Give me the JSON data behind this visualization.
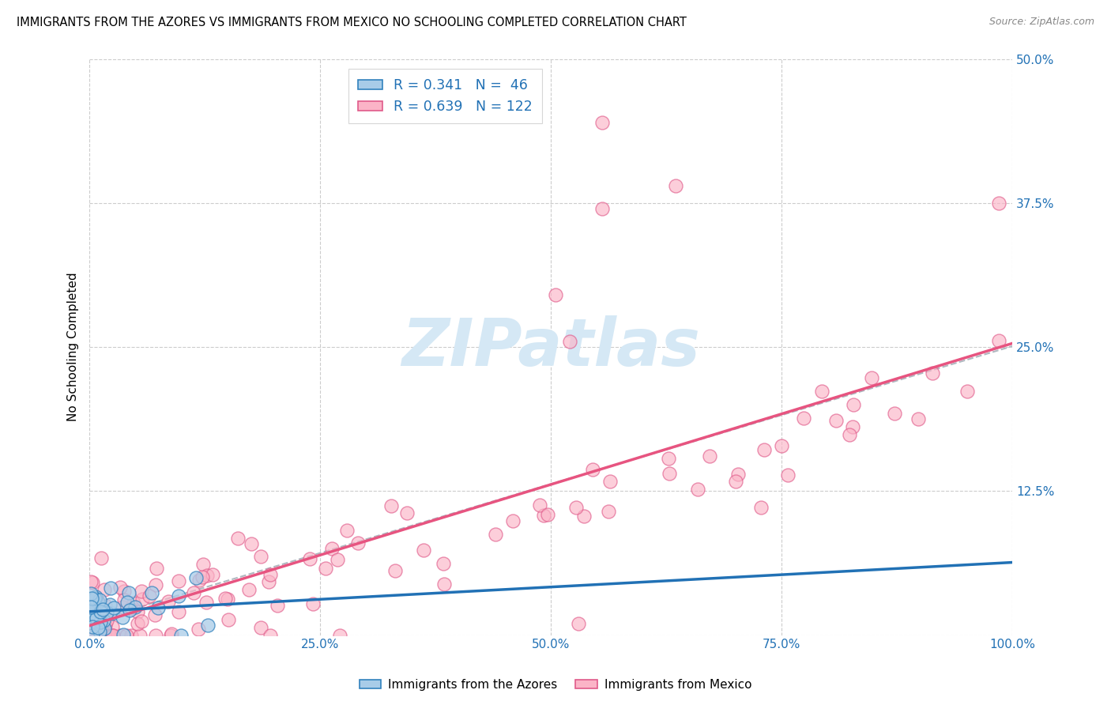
{
  "title": "IMMIGRANTS FROM THE AZORES VS IMMIGRANTS FROM MEXICO NO SCHOOLING COMPLETED CORRELATION CHART",
  "source": "Source: ZipAtlas.com",
  "ylabel": "No Schooling Completed",
  "legend_entry1": "Immigrants from the Azores",
  "legend_entry2": "Immigrants from Mexico",
  "R1": 0.341,
  "N1": 46,
  "R2": 0.639,
  "N2": 122,
  "color_azores_fill": "#a8cce8",
  "color_azores_edge": "#3182bd",
  "color_mexico_fill": "#fbb4c7",
  "color_mexico_edge": "#e05a8a",
  "color_line_azores": "#2171b5",
  "color_line_mexico": "#e75480",
  "color_dashed": "#b0b8c0",
  "color_axis_labels": "#2171b5",
  "watermark_color": "#d5e8f5",
  "xlim": [
    0.0,
    1.0
  ],
  "ylim": [
    0.0,
    0.5
  ],
  "background_color": "#ffffff",
  "seed_azores": 42,
  "seed_mexico": 99
}
